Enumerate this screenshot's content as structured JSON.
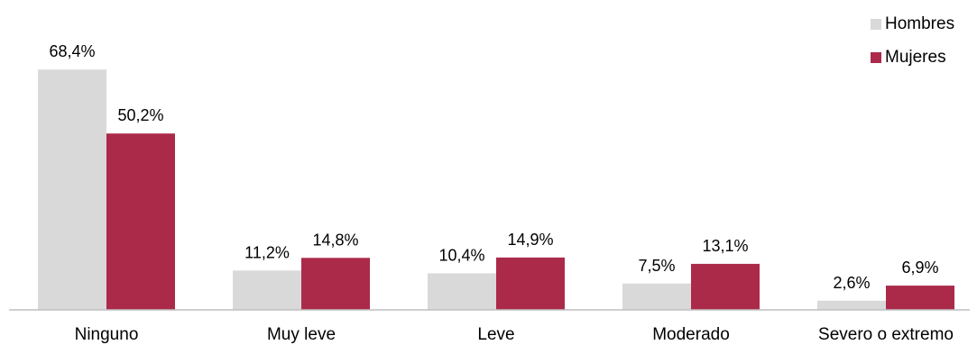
{
  "chart_data": {
    "type": "bar",
    "categories": [
      "Ninguno",
      "Muy leve",
      "Leve",
      "Moderado",
      "Severo o extremo"
    ],
    "series": [
      {
        "name": "Hombres",
        "color": "#d9d9d9",
        "values": [
          68.4,
          11.2,
          10.4,
          7.5,
          2.6
        ],
        "labels": [
          "68,4%",
          "11,2%",
          "10,4%",
          "7,5%",
          "2,6%"
        ]
      },
      {
        "name": "Mujeres",
        "color": "#ab2a4a",
        "values": [
          50.2,
          14.8,
          14.9,
          13.1,
          6.9
        ],
        "labels": [
          "50,2%",
          "14,8%",
          "14,9%",
          "13,1%",
          "6,9%"
        ]
      }
    ],
    "ylim": [
      0,
      75
    ],
    "grid": false,
    "legend": "top-right"
  }
}
